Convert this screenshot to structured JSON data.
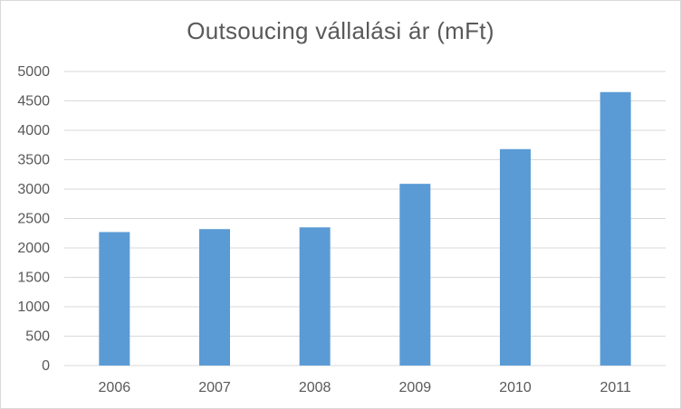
{
  "chart_data": {
    "type": "bar",
    "title": "Outsoucing vállalási ár (mFt)",
    "xlabel": "",
    "ylabel": "",
    "categories": [
      "2006",
      "2007",
      "2008",
      "2009",
      "2010",
      "2011"
    ],
    "values": [
      2270,
      2320,
      2350,
      3090,
      3680,
      4650
    ],
    "ylim": [
      0,
      5000
    ],
    "yticks": [
      "0",
      "500",
      "1000",
      "1500",
      "2000",
      "2500",
      "3000",
      "3500",
      "4000",
      "4500",
      "5000"
    ],
    "grid": true,
    "legend": "none",
    "bar_color": "#5b9bd5"
  }
}
